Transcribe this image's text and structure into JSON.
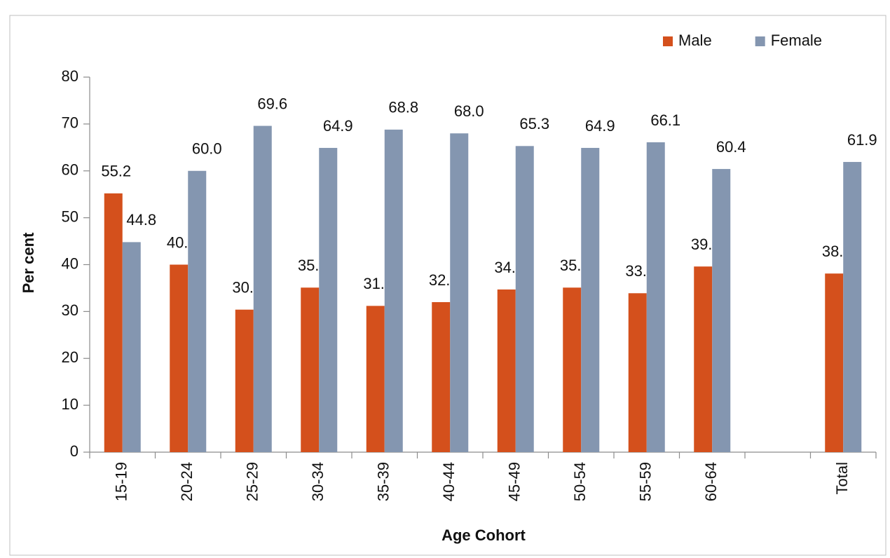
{
  "chart_data": {
    "type": "bar",
    "xlabel": "Age Cohort",
    "ylabel": "Per cent",
    "categories": [
      "15-19",
      "20-24",
      "25-29",
      "30-34",
      "35-39",
      "40-44",
      "45-49",
      "50-54",
      "55-59",
      "60-64",
      null,
      "Total"
    ],
    "series": [
      {
        "name": "Male",
        "color": "#d4501c",
        "values": [
          55.2,
          40,
          30.4,
          35.1,
          31.2,
          32,
          34.7,
          35.1,
          33.9,
          39.6,
          null,
          38.1
        ],
        "value_labels": [
          "55.2",
          "40.0",
          "30.4",
          "35.1",
          "31.2",
          "32.0",
          "34.7",
          "35.1",
          "33.9",
          "39.6",
          null,
          "38.1"
        ]
      },
      {
        "name": "Female",
        "color": "#8496b0",
        "values": [
          44.8,
          60,
          69.6,
          64.9,
          68.8,
          68,
          65.3,
          64.9,
          66.1,
          60.4,
          null,
          61.9
        ],
        "value_labels": [
          "44.8",
          "60.0",
          "69.6",
          "64.9",
          "68.8",
          "68.0",
          "65.3",
          "64.9",
          "66.1",
          "60.4",
          null,
          "61.9"
        ]
      }
    ],
    "ylim": [
      0,
      80
    ],
    "yticks": [
      0,
      10,
      20,
      30,
      40,
      50,
      60,
      70,
      80
    ],
    "legend": "top-right",
    "grid": false
  }
}
